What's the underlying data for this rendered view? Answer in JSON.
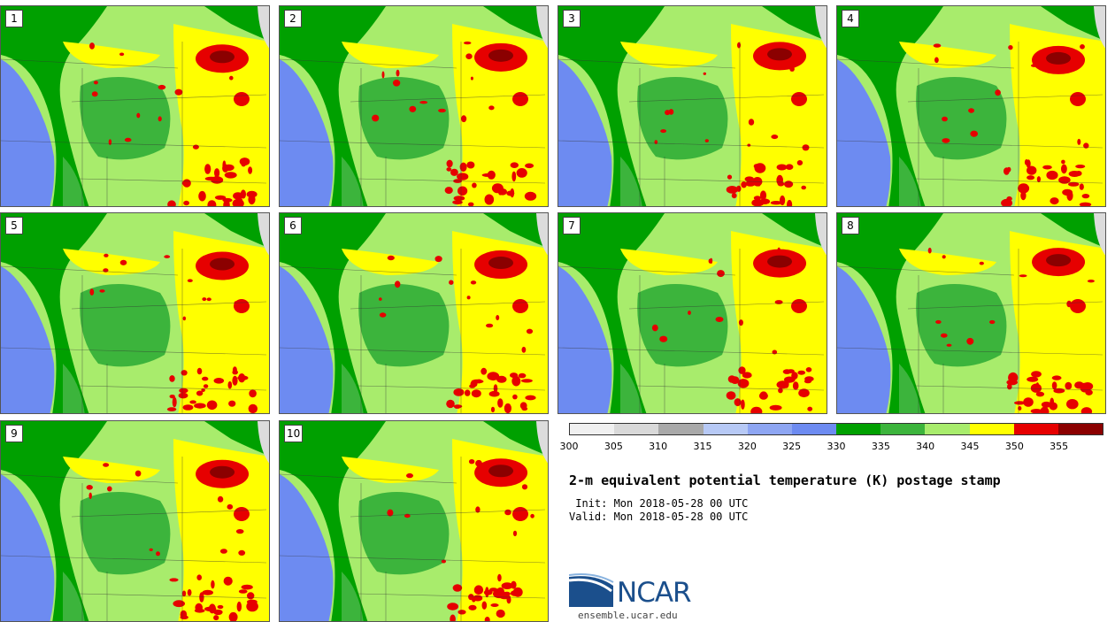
{
  "title": "2-m equivalent potential temperature (K) postage stamp",
  "init": " Init: Mon 2018-05-28 00 UTC",
  "valid": "Valid: Mon 2018-05-28 00 UTC",
  "logo_text": "NCAR",
  "logo_url": "ensemble.ucar.edu",
  "colorbar": {
    "labels": [
      "300",
      "305",
      "310",
      "315",
      "320",
      "325",
      "330",
      "335",
      "340",
      "345",
      "350",
      "355"
    ],
    "colors": [
      "#f0f0f0",
      "#d9d9d9",
      "#a9a9a9",
      "#b7c9f5",
      "#8ea6f3",
      "#6d8bf1",
      "#00a000",
      "#3cb43c",
      "#a8ec6c",
      "#ffff00",
      "#e60000",
      "#8b0000"
    ]
  },
  "panels": [
    {
      "label": "1"
    },
    {
      "label": "2"
    },
    {
      "label": "3"
    },
    {
      "label": "4"
    },
    {
      "label": "5"
    },
    {
      "label": "6"
    },
    {
      "label": "7"
    },
    {
      "label": "8"
    },
    {
      "label": "9"
    },
    {
      "label": "10"
    }
  ]
}
